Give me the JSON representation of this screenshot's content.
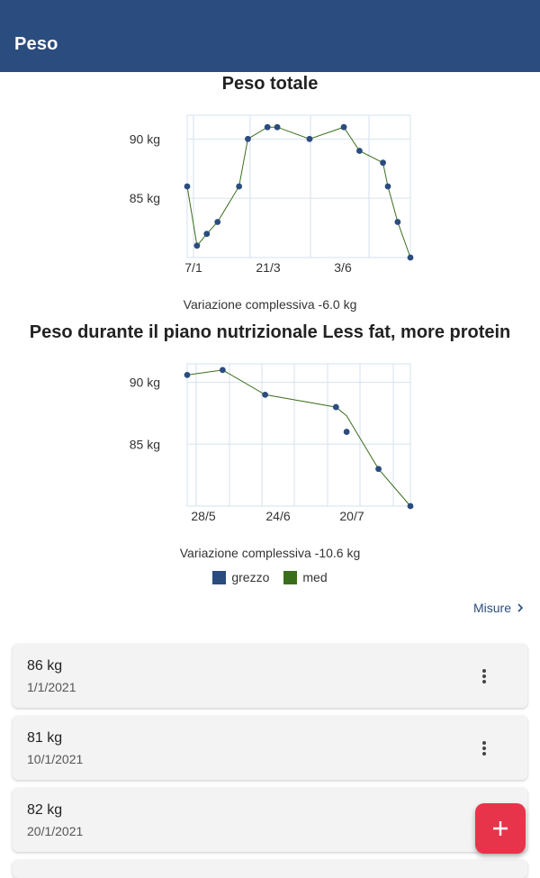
{
  "appbar": {
    "title": "Peso"
  },
  "charts": [
    {
      "title": "Peso totale",
      "variation": "Variazione complessiva -6.0 kg"
    },
    {
      "title": "Peso durante il piano nutrizionale Less fat, more protein",
      "variation": "Variazione complessiva -10.6 kg"
    }
  ],
  "chart_data": [
    {
      "type": "line",
      "title": "Peso totale",
      "x_tick_labels": [
        "7/1",
        "21/3",
        "3/6"
      ],
      "y_tick_labels": [
        "90 kg",
        "85 kg"
      ],
      "ylim": [
        80,
        92
      ],
      "grid": true,
      "series": [
        {
          "name": "grezzo",
          "points": [
            86,
            81,
            82,
            83,
            86,
            90,
            91,
            91,
            90,
            91,
            89,
            88,
            86,
            83,
            80
          ]
        },
        {
          "name": "med",
          "points": [
            86,
            81,
            82,
            83,
            86,
            90,
            91,
            91,
            90,
            91,
            89,
            88,
            86,
            83,
            80
          ]
        }
      ],
      "x_values": [
        0,
        10,
        20,
        31,
        53,
        62,
        82,
        92,
        125,
        160,
        176,
        200,
        205,
        215,
        228
      ]
    },
    {
      "type": "line",
      "title": "Peso durante il piano nutrizionale Less fat, more protein",
      "x_tick_labels": [
        "28/5",
        "24/6",
        "20/7"
      ],
      "y_tick_labels": [
        "90 kg",
        "85 kg"
      ],
      "ylim": [
        80,
        91.5
      ],
      "grid": true,
      "series": [
        {
          "name": "grezzo",
          "points": [
            90.6,
            91,
            89,
            88,
            86,
            83,
            80
          ]
        },
        {
          "name": "med",
          "points": [
            90.6,
            91,
            89,
            88,
            87.3,
            83,
            80
          ]
        }
      ],
      "x_values": [
        0,
        10,
        22,
        42,
        45,
        54,
        63
      ]
    }
  ],
  "legend": [
    {
      "label": "grezzo",
      "color": "#2b4c7e"
    },
    {
      "label": "med",
      "color": "#3a6e1c"
    }
  ],
  "measures_link": {
    "label": "Misure",
    "icon": "chevron-right-icon"
  },
  "entries": [
    {
      "weight": "86 kg",
      "date": "1/1/2021"
    },
    {
      "weight": "81 kg",
      "date": "10/1/2021"
    },
    {
      "weight": "82 kg",
      "date": "20/1/2021"
    }
  ],
  "fab": {
    "icon": "plus-icon"
  },
  "colors": {
    "primary": "#2b4c7e",
    "accent": "#e8344a",
    "med_line": "#3a6e1c",
    "grid": "#d6e2f0"
  }
}
